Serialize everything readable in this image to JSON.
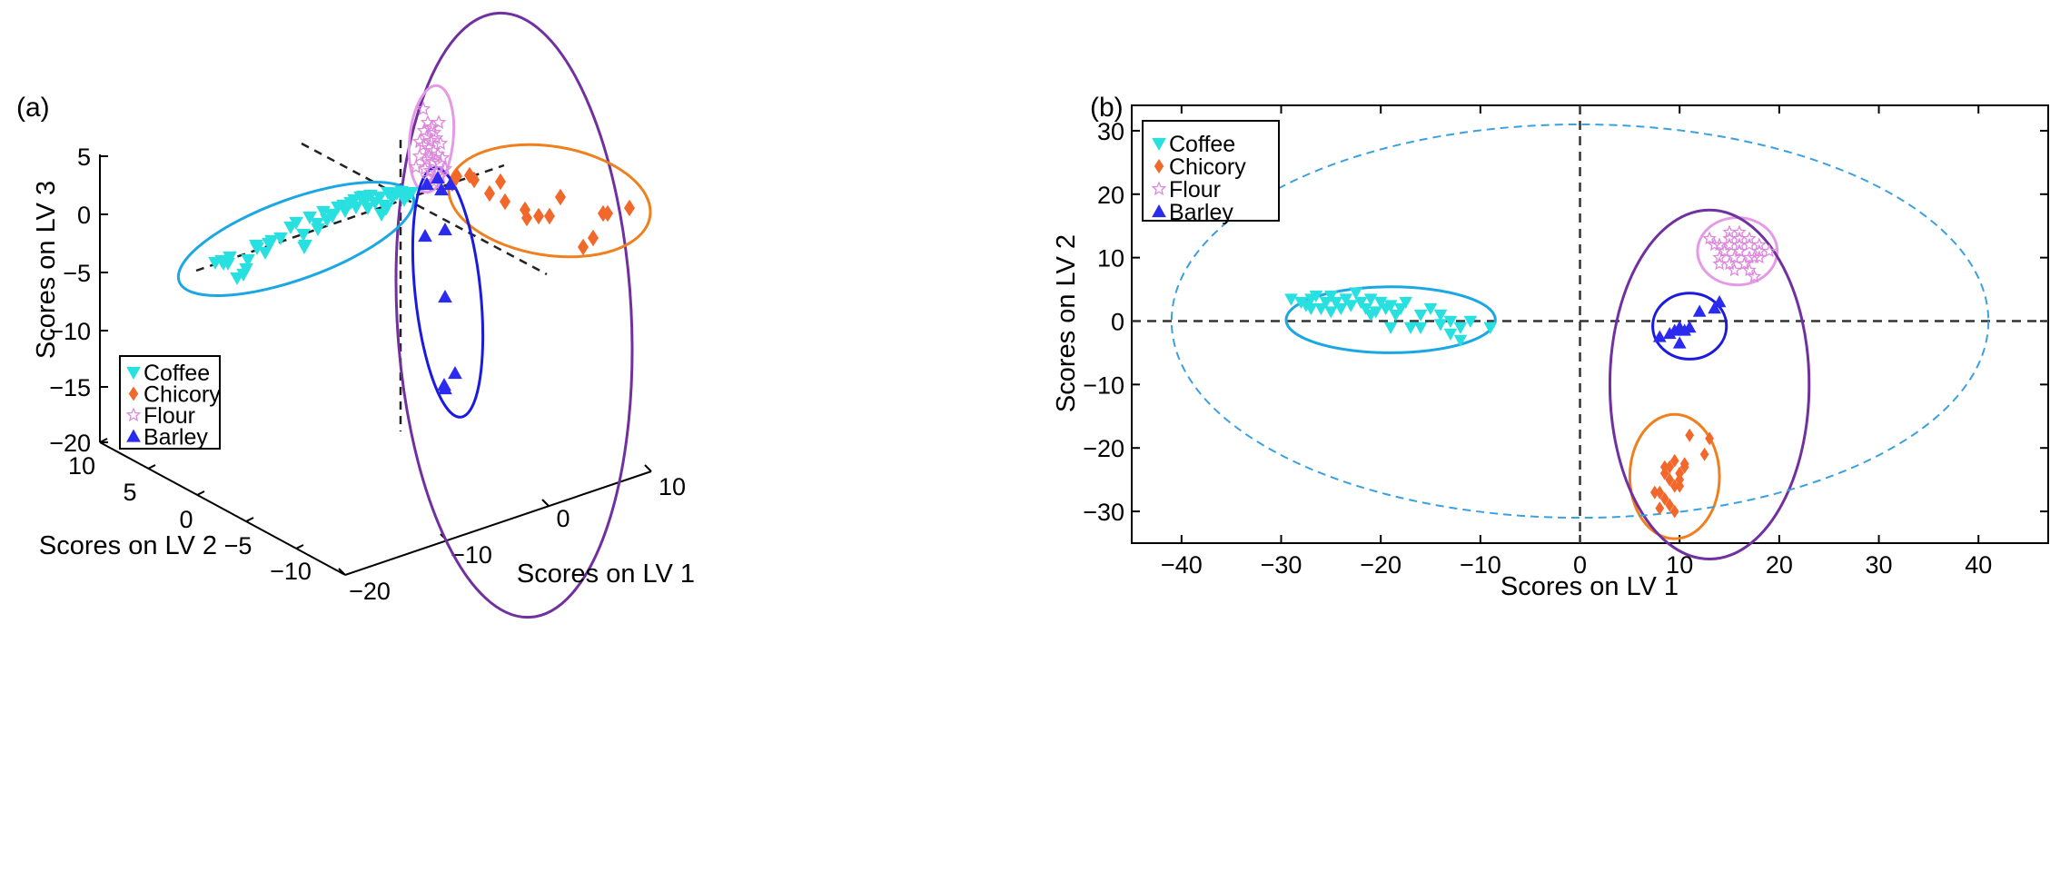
{
  "panels": {
    "a": "(a)",
    "b": "(b)"
  },
  "legend_entries": [
    {
      "name": "Coffee",
      "color": "#29e0e0",
      "marker": "triangle-down"
    },
    {
      "name": "Chicory",
      "color": "#f2682a",
      "marker": "diamond"
    },
    {
      "name": "Flour",
      "color": "#dd88dd",
      "marker": "star"
    },
    {
      "name": "Barley",
      "color": "#2b2bf0",
      "marker": "triangle-up"
    }
  ],
  "colors": {
    "coffee_ellipse": "#1aa7e4",
    "chicory_ellipse": "#f0801e",
    "flour_ellipse": "#e59ae5",
    "barley_ellipse": "#1a1ae0",
    "group_ellipse": "#7030a0",
    "confidence_ellipse": "#3ba0e0"
  },
  "chart_data": [
    {
      "type": "scatter",
      "panel": "(a)",
      "projection": "3d",
      "xlabel": "Scores on LV 1",
      "ylabel": "Scores on LV 2",
      "zlabel": "Scores on LV 3",
      "x_ticks": [
        "−20",
        "−10",
        "0",
        "10"
      ],
      "y_ticks": [
        "10",
        "5",
        "0",
        "−5",
        "−10"
      ],
      "z_ticks": [
        "5",
        "0",
        "−5",
        "−10",
        "−15",
        "−20"
      ],
      "series": [
        {
          "name": "Coffee",
          "marker": "triangle-down",
          "count": 50
        },
        {
          "name": "Chicory",
          "marker": "diamond",
          "count": 17
        },
        {
          "name": "Flour",
          "marker": "star",
          "count": 30
        },
        {
          "name": "Barley",
          "marker": "triangle-up",
          "count": 10
        }
      ]
    },
    {
      "type": "scatter",
      "panel": "(b)",
      "xlabel": "Scores on LV 1",
      "ylabel": "Scores on LV 2",
      "xlim": [
        -45,
        47
      ],
      "ylim": [
        -35,
        34
      ],
      "xticks": [
        -40,
        -30,
        -20,
        -10,
        0,
        10,
        20,
        30,
        40
      ],
      "yticks": [
        -30,
        -20,
        -10,
        0,
        10,
        20,
        30
      ],
      "x_tick_labels": [
        "−40",
        "−30",
        "−20",
        "−10",
        "0",
        "10",
        "20",
        "30",
        "40"
      ],
      "y_tick_labels": [
        "−30",
        "−20",
        "−10",
        "0",
        "10",
        "20",
        "30"
      ],
      "series": [
        {
          "name": "Coffee",
          "x": [
            -29,
            -28,
            -27.5,
            -27,
            -26.5,
            -26,
            -25.5,
            -25,
            -24.5,
            -24,
            -23.5,
            -23,
            -22.5,
            -22,
            -21.5,
            -21,
            -20.5,
            -20,
            -19.5,
            -19,
            -18.5,
            -18,
            -17.5,
            -17,
            -16,
            -15,
            -14,
            -13,
            -12,
            -11,
            -9,
            -27,
            -25,
            -23,
            -21,
            -19,
            -16,
            -14,
            -13,
            -12
          ],
          "y": [
            3.5,
            3,
            2.5,
            3.5,
            4,
            2,
            3,
            4,
            3,
            2,
            3.5,
            2.5,
            4.5,
            3,
            2,
            3.5,
            1.5,
            3,
            2,
            2.5,
            1,
            2,
            3,
            -1,
            -1,
            2,
            1,
            0,
            -1,
            0,
            -1,
            2,
            1.5,
            2.5,
            1,
            -1,
            1,
            -0.5,
            -2,
            -3
          ]
        },
        {
          "name": "Chicory",
          "x": [
            8,
            8.5,
            9,
            9.5,
            10,
            10,
            10.5,
            9,
            8.5,
            9.5,
            10,
            11,
            13,
            12.5,
            8,
            9,
            10.5,
            9.5,
            8.5,
            7.5
          ],
          "y": [
            -27,
            -23,
            -25,
            -22,
            -24,
            -26,
            -23,
            -29,
            -28,
            -30,
            -25,
            -18,
            -18.5,
            -21,
            -29.5,
            -23,
            -22.5,
            -26,
            -24,
            -27
          ]
        },
        {
          "name": "Flour",
          "x": [
            13,
            14,
            15,
            16,
            17,
            18,
            14.5,
            15.5,
            16.5,
            17.5,
            13.5,
            14,
            15,
            16,
            17,
            18,
            19,
            15,
            16,
            17,
            14,
            15,
            16,
            17,
            18,
            15.5,
            16.5,
            17.5,
            14.5,
            16
          ],
          "y": [
            13,
            12,
            14,
            13,
            12,
            11,
            11,
            10,
            9,
            10,
            12,
            10,
            9,
            11,
            10,
            12,
            11,
            13,
            14,
            8,
            9,
            12,
            11,
            13,
            10,
            8,
            9,
            7,
            11,
            12
          ]
        },
        {
          "name": "Barley",
          "x": [
            8,
            9,
            9.5,
            10,
            10.5,
            11,
            12,
            13.5,
            14,
            10
          ],
          "y": [
            -2.5,
            -2,
            -1.5,
            -1,
            -1.5,
            -1,
            1.5,
            2,
            3,
            -3.5
          ]
        }
      ],
      "ellipses": [
        {
          "name": "Coffee",
          "cx": -19,
          "cy": 0.2,
          "rx": 10.5,
          "ry": 5.2
        },
        {
          "name": "Flour",
          "cx": 15.8,
          "cy": 11,
          "rx": 4,
          "ry": 5.3
        },
        {
          "name": "Barley",
          "cx": 11,
          "cy": -0.8,
          "rx": 3.7,
          "ry": 5.2
        },
        {
          "name": "Chicory",
          "cx": 9.5,
          "cy": -24.5,
          "rx": 4.5,
          "ry": 9.8
        },
        {
          "name": "Flour/Barley/Chicory",
          "cx": 13,
          "cy": -10,
          "rx": 10,
          "ry": 27.5
        },
        {
          "name": "95% confidence",
          "cx": 0,
          "cy": 0,
          "rx": 41,
          "ry": 31
        }
      ]
    }
  ]
}
